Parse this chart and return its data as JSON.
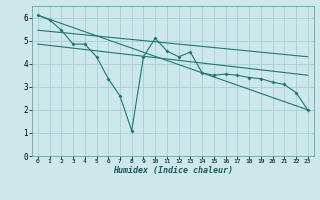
{
  "xlabel": "Humidex (Indice chaleur)",
  "bg_color": "#cce8ea",
  "grid_color": "#aad0d2",
  "line_color": "#1a7a6e",
  "spine_color": "#4a9a8a",
  "xlim": [
    -0.5,
    23.5
  ],
  "ylim": [
    0,
    6.5
  ],
  "xtick_labels": [
    "0",
    "1",
    "2",
    "3",
    "4",
    "5",
    "6",
    "7",
    "8",
    "9",
    "10",
    "11",
    "12",
    "13",
    "14",
    "15",
    "16",
    "17",
    "18",
    "19",
    "20",
    "21",
    "22",
    "23"
  ],
  "xtick_vals": [
    0,
    1,
    2,
    3,
    4,
    5,
    6,
    7,
    8,
    9,
    10,
    11,
    12,
    13,
    14,
    15,
    16,
    17,
    18,
    19,
    20,
    21,
    22,
    23
  ],
  "ytick_vals": [
    0,
    1,
    2,
    3,
    4,
    5,
    6
  ],
  "line1_x": [
    0,
    1,
    2,
    3,
    4,
    5,
    6,
    7,
    8,
    9,
    10,
    11,
    12,
    13,
    14,
    15,
    16,
    17,
    18,
    19,
    20,
    21,
    22,
    23
  ],
  "line1_y": [
    6.1,
    5.9,
    5.45,
    4.85,
    4.85,
    4.3,
    3.35,
    2.6,
    1.1,
    4.3,
    5.1,
    4.55,
    4.3,
    4.5,
    3.6,
    3.5,
    3.55,
    3.5,
    3.4,
    3.35,
    3.2,
    3.1,
    2.75,
    2.0
  ],
  "line2_x": [
    0,
    23
  ],
  "line2_y": [
    6.1,
    2.0
  ],
  "line3_x": [
    0,
    23
  ],
  "line3_y": [
    5.45,
    4.3
  ],
  "line4_x": [
    0,
    23
  ],
  "line4_y": [
    4.85,
    3.5
  ]
}
